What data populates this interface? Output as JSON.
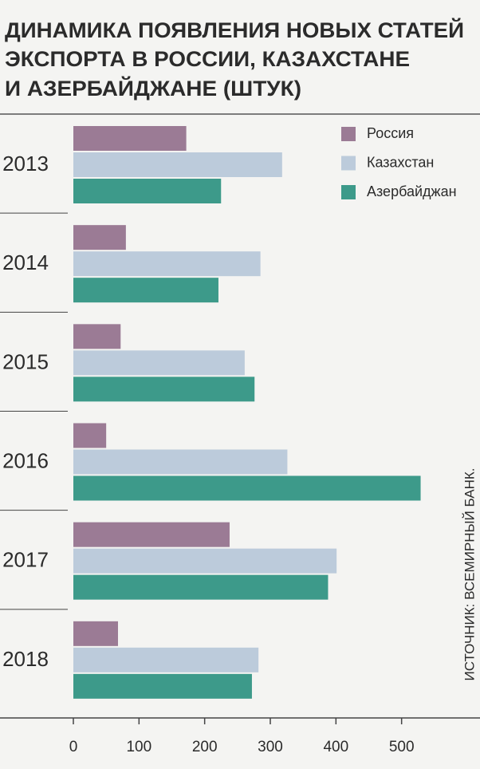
{
  "chart_data": {
    "type": "barh",
    "title": [
      "ДИНАМИКА ПОЯВЛЕНИЯ НОВЫХ СТАТЕЙ",
      "ЭКСПОРТА В РОССИИ, КАЗАХСТАНЕ",
      "И АЗЕРБАЙДЖАНЕ (ШТУК)"
    ],
    "source": "ИСТОЧНИК: ВСЕМИРНЫЙ БАНК.",
    "categories": [
      "2013",
      "2014",
      "2015",
      "2016",
      "2017",
      "2018"
    ],
    "series": [
      {
        "name": "Россия",
        "color": "#9b7b95",
        "values": [
          172,
          80,
          72,
          50,
          238,
          68
        ]
      },
      {
        "name": "Казахстан",
        "color": "#bccbdb",
        "values": [
          318,
          285,
          261,
          326,
          401,
          282
        ]
      },
      {
        "name": "Азербайджан",
        "color": "#3d9a8a",
        "values": [
          225,
          221,
          276,
          529,
          388,
          272
        ]
      }
    ],
    "xlim": [
      0,
      600
    ],
    "xticks": [
      0,
      100,
      200,
      300,
      400,
      500
    ],
    "legend": "upper right"
  }
}
